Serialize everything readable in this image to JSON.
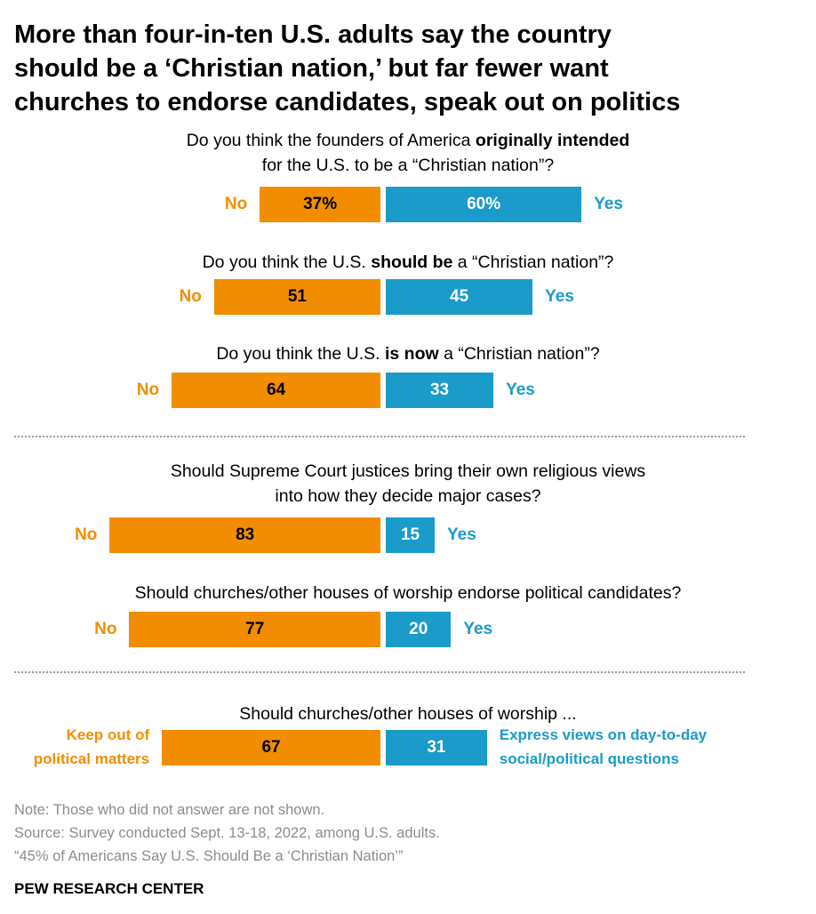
{
  "title": {
    "line1": "More than four-in-ten U.S. adults say the country",
    "line2": "should be a ‘Christian nation,’ but far fewer want",
    "line3": "churches to endorse candidates, speak out on politics"
  },
  "questions": {
    "q1": {
      "line1_pre": "Do you think the founders of America ",
      "line1_bold": "originally intended",
      "line2": "for the U.S. to be a “Christian nation”?"
    },
    "q2": {
      "pre": "Do you think the U.S. ",
      "bold": "should be",
      "post": " a “Christian nation”?"
    },
    "q3": {
      "pre": "Do you think the U.S. ",
      "bold": "is now",
      "post": " a “Christian nation”?"
    },
    "q4": {
      "line1": "Should Supreme Court justices bring their own religious views",
      "line2": "into how they decide major cases?"
    },
    "q5": {
      "line1": "Should churches/other houses of worship endorse political candidates?"
    },
    "q6": {
      "line1": "Should churches/other houses of worship ..."
    }
  },
  "labels": {
    "no": "No",
    "yes": "Yes",
    "keep_out_1": "Keep out of",
    "keep_out_2": "political matters",
    "express_1": "Express views on day-to-day",
    "express_2": "social/political questions"
  },
  "chart_data": {
    "type": "bar",
    "orientation": "diverging-horizontal",
    "categories": [
      "Founders originally intended U.S. to be a “Christian nation”",
      "U.S. should be a “Christian nation”",
      "U.S. is now a “Christian nation”",
      "Supreme Court justices bring their own religious views into decisions",
      "Churches/other houses of worship endorse political candidates",
      "Churches/other houses of worship ..."
    ],
    "series": [
      {
        "name": "No",
        "values": [
          37,
          51,
          64,
          83,
          77,
          67
        ],
        "labels": [
          "37%",
          "51",
          "64",
          "83",
          "77",
          "67"
        ],
        "color": "#f28d00"
      },
      {
        "name": "Yes",
        "values": [
          60,
          45,
          33,
          15,
          20,
          31
        ],
        "labels": [
          "60%",
          "45",
          "33",
          "15",
          "20",
          "31"
        ],
        "color": "#1a9bc9"
      }
    ],
    "xlim": [
      0,
      100
    ]
  },
  "notes": {
    "note": "Note: Those who did not answer are not shown.",
    "source": "Source: Survey conducted Sept. 13-18, 2022, among U.S. adults.",
    "report": "“45% of Americans Say U.S. Should Be a ‘Christian Nation’”"
  },
  "brand": "PEW RESEARCH CENTER"
}
